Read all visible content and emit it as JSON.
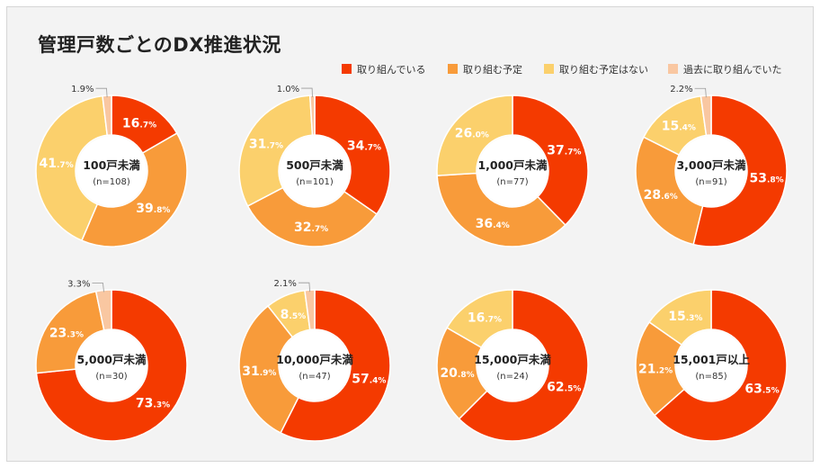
{
  "title": "管理戸数ごとのDX推進状況",
  "colors": {
    "取り組んでいる": "#f43a00",
    "取り組む予定": "#f89b3a",
    "取り組む予定はない": "#fbd06c",
    "過去に取り組んでいた": "#f9c7a1"
  },
  "legend": [
    "取り組んでいる",
    "取り組む予定",
    "取り組む予定はない",
    "過去に取り組んでいた"
  ],
  "chart_data": [
    {
      "type": "pie",
      "label": "100戸未満",
      "n": "(n=108)",
      "slices": [
        {
          "name": "取り組んでいる",
          "value": 16.7,
          "int": "16",
          "dec": ".7%"
        },
        {
          "name": "取り組む予定",
          "value": 39.8,
          "int": "39",
          "dec": ".8%"
        },
        {
          "name": "取り組む予定はない",
          "value": 41.7,
          "int": "41",
          "dec": ".7%"
        },
        {
          "name": "過去に取り組んでいた",
          "value": 1.9,
          "int": "1.9%",
          "dec": ""
        }
      ]
    },
    {
      "type": "pie",
      "label": "500戸未満",
      "n": "(n=101)",
      "slices": [
        {
          "name": "取り組んでいる",
          "value": 34.7,
          "int": "34",
          "dec": ".7%"
        },
        {
          "name": "取り組む予定",
          "value": 32.7,
          "int": "32",
          "dec": ".7%"
        },
        {
          "name": "取り組む予定はない",
          "value": 31.7,
          "int": "31",
          "dec": ".7%"
        },
        {
          "name": "過去に取り組んでいた",
          "value": 1.0,
          "int": "1.0%",
          "dec": ""
        }
      ]
    },
    {
      "type": "pie",
      "label": "1,000戸未満",
      "n": "(n=77)",
      "slices": [
        {
          "name": "取り組んでいる",
          "value": 37.7,
          "int": "37",
          "dec": ".7%"
        },
        {
          "name": "取り組む予定",
          "value": 36.4,
          "int": "36",
          "dec": ".4%"
        },
        {
          "name": "取り組む予定はない",
          "value": 26.0,
          "int": "26",
          "dec": ".0%"
        }
      ]
    },
    {
      "type": "pie",
      "label": "3,000戸未満",
      "n": "(n=91)",
      "slices": [
        {
          "name": "取り組んでいる",
          "value": 53.8,
          "int": "53",
          "dec": ".8%"
        },
        {
          "name": "取り組む予定",
          "value": 28.6,
          "int": "28",
          "dec": ".6%"
        },
        {
          "name": "取り組む予定はない",
          "value": 15.4,
          "int": "15",
          "dec": ".4%"
        },
        {
          "name": "過去に取り組んでいた",
          "value": 2.2,
          "int": "2.2%",
          "dec": ""
        }
      ]
    },
    {
      "type": "pie",
      "label": "5,000戸未満",
      "n": "(n=30)",
      "slices": [
        {
          "name": "取り組んでいる",
          "value": 73.3,
          "int": "73",
          "dec": ".3%"
        },
        {
          "name": "取り組む予定",
          "value": 23.3,
          "int": "23",
          "dec": ".3%"
        },
        {
          "name": "過去に取り組んでいた",
          "value": 3.3,
          "int": "3.3%",
          "dec": ""
        }
      ]
    },
    {
      "type": "pie",
      "label": "10,000戸未満",
      "n": "(n=47)",
      "slices": [
        {
          "name": "取り組んでいる",
          "value": 57.4,
          "int": "57",
          "dec": ".4%"
        },
        {
          "name": "取り組む予定",
          "value": 31.9,
          "int": "31",
          "dec": ".9%"
        },
        {
          "name": "取り組む予定はない",
          "value": 8.5,
          "int": "8",
          "dec": ".5%"
        },
        {
          "name": "過去に取り組んでいた",
          "value": 2.1,
          "int": "2.1%",
          "dec": ""
        }
      ]
    },
    {
      "type": "pie",
      "label": "15,000戸未満",
      "n": "(n=24)",
      "slices": [
        {
          "name": "取り組んでいる",
          "value": 62.5,
          "int": "62",
          "dec": ".5%"
        },
        {
          "name": "取り組む予定",
          "value": 20.8,
          "int": "20",
          "dec": ".8%"
        },
        {
          "name": "取り組む予定はない",
          "value": 16.7,
          "int": "16",
          "dec": ".7%"
        }
      ]
    },
    {
      "type": "pie",
      "label": "15,001戸以上",
      "n": "(n=85)",
      "slices": [
        {
          "name": "取り組んでいる",
          "value": 63.5,
          "int": "63",
          "dec": ".5%"
        },
        {
          "name": "取り組む予定",
          "value": 21.2,
          "int": "21",
          "dec": ".2%"
        },
        {
          "name": "取り組む予定はない",
          "value": 15.3,
          "int": "15",
          "dec": ".3%"
        }
      ]
    }
  ]
}
